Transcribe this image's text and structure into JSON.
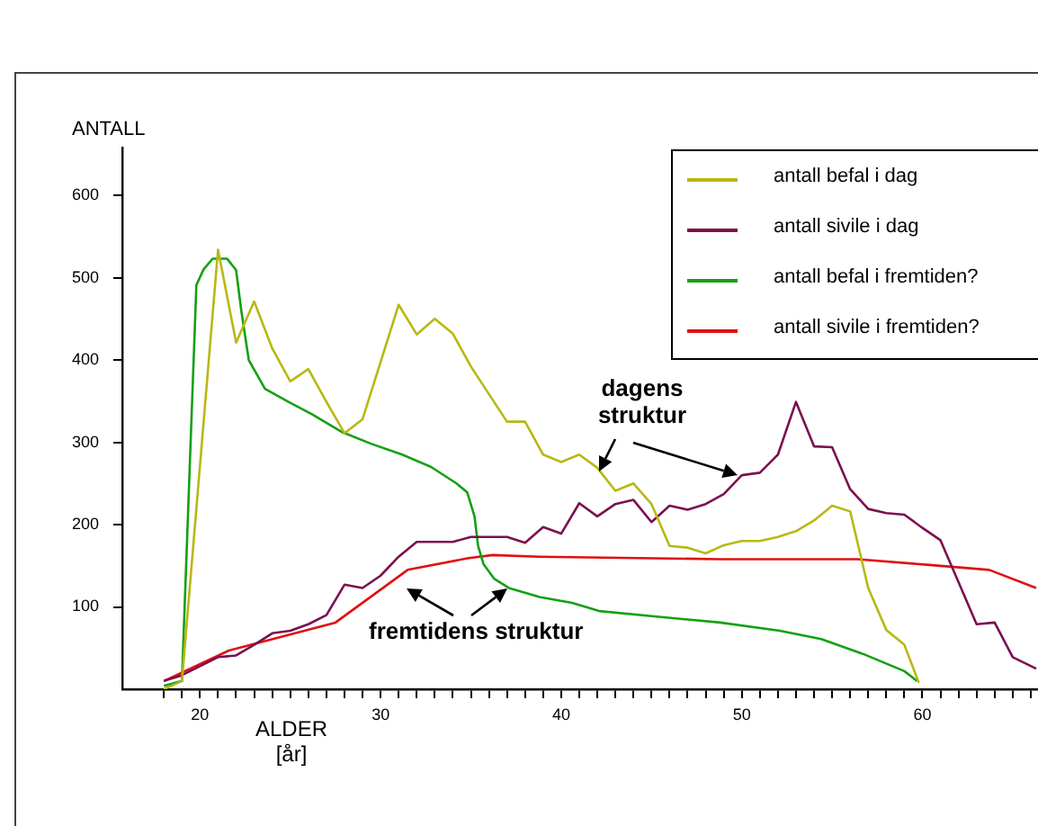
{
  "chart_data": {
    "type": "line",
    "xlabel": "ALDER [år]",
    "ylabel": "ANTALL",
    "xlim": [
      15.7,
      66.4
    ],
    "ylim": [
      0,
      658
    ],
    "xticks": [
      {
        "value": 18,
        "label": null
      },
      {
        "value": 19,
        "label": null
      },
      20,
      {
        "value": 21,
        "label": null
      },
      {
        "value": 22,
        "label": null
      },
      {
        "value": 23,
        "label": null
      },
      {
        "value": 24,
        "label": null
      },
      {
        "value": 25,
        "label": null
      },
      {
        "value": 26,
        "label": null
      },
      {
        "value": 27,
        "label": null
      },
      {
        "value": 28,
        "label": null
      },
      {
        "value": 29,
        "label": null
      },
      30,
      {
        "value": 31,
        "label": null
      },
      {
        "value": 32,
        "label": null
      },
      {
        "value": 33,
        "label": null
      },
      {
        "value": 34,
        "label": null
      },
      {
        "value": 35,
        "label": null
      },
      {
        "value": 36,
        "label": null
      },
      {
        "value": 37,
        "label": null
      },
      {
        "value": 38,
        "label": null
      },
      {
        "value": 39,
        "label": null
      },
      40,
      {
        "value": 41,
        "label": null
      },
      {
        "value": 42,
        "label": null
      },
      {
        "value": 43,
        "label": null
      },
      {
        "value": 44,
        "label": null
      },
      {
        "value": 45,
        "label": null
      },
      {
        "value": 46,
        "label": null
      },
      {
        "value": 47,
        "label": null
      },
      {
        "value": 48,
        "label": null
      },
      {
        "value": 49,
        "label": null
      },
      50,
      {
        "value": 51,
        "label": null
      },
      {
        "value": 52,
        "label": null
      },
      {
        "value": 53,
        "label": null
      },
      {
        "value": 54,
        "label": null
      },
      {
        "value": 55,
        "label": null
      },
      {
        "value": 56,
        "label": null
      },
      {
        "value": 57,
        "label": null
      },
      {
        "value": 58,
        "label": null
      },
      {
        "value": 59,
        "label": null
      },
      60,
      {
        "value": 61,
        "label": null
      },
      {
        "value": 62,
        "label": null
      },
      {
        "value": 63,
        "label": null
      },
      {
        "value": 64,
        "label": null
      },
      {
        "value": 65,
        "label": null
      },
      {
        "value": 66,
        "label": null
      }
    ],
    "yticks": [
      100,
      200,
      300,
      400,
      500,
      600
    ],
    "grid": false,
    "legend": "top right",
    "marker": "none",
    "line_style": "solid",
    "annotations": [
      "dagens struktur",
      "fremtidens struktur"
    ],
    "series": [
      {
        "name": "antall befal i dag",
        "color": "#b8b814",
        "x": [
          18,
          19,
          21,
          22,
          23,
          24,
          25,
          26,
          27,
          28,
          29,
          31,
          32,
          33,
          34,
          35,
          37,
          38,
          39,
          40,
          41,
          42,
          43,
          44,
          45,
          46,
          47,
          48,
          49,
          50,
          51,
          52,
          53,
          54,
          55,
          56,
          57,
          58,
          59,
          59.8
        ],
        "values": [
          0,
          10,
          534,
          421,
          471,
          414,
          374,
          389,
          349,
          311,
          328,
          467,
          431,
          450,
          432,
          392,
          325,
          325,
          285,
          276,
          285,
          269,
          241,
          250,
          225,
          174,
          172,
          165,
          175,
          180,
          180,
          185,
          192,
          205,
          223,
          216,
          123,
          72,
          54,
          8
        ]
      },
      {
        "name": "antall sivile i dag",
        "color": "#7a1050",
        "x": [
          18,
          19,
          21,
          22,
          23,
          24,
          25,
          26,
          27,
          28,
          29,
          30,
          31,
          32,
          33,
          34,
          35,
          36,
          37,
          38,
          39,
          40,
          41,
          42,
          43,
          44,
          45,
          46,
          47,
          48,
          49,
          50,
          51,
          52,
          53,
          54,
          55,
          56,
          57,
          58,
          59,
          60,
          61,
          62,
          63,
          64,
          65,
          66.3
        ],
        "values": [
          10,
          17,
          39,
          41,
          54,
          68,
          71,
          79,
          90,
          127,
          123,
          138,
          161,
          179,
          179,
          179,
          185,
          185,
          185,
          178,
          197,
          189,
          226,
          210,
          225,
          230,
          203,
          223,
          218,
          225,
          237,
          260,
          263,
          285,
          349,
          295,
          294,
          243,
          219,
          214,
          212,
          196,
          181,
          130,
          79,
          81,
          39,
          25
        ]
      },
      {
        "name": "antall befal i fremtiden?",
        "color": "#14a014",
        "x": [
          18,
          19,
          19.8,
          20.2,
          20.7,
          21.5,
          22,
          22.3,
          22.7,
          23.6,
          24.9,
          26.2,
          27.9,
          29.5,
          31.2,
          32.8,
          34.2,
          34.8,
          35.2,
          35.4,
          35.7,
          36.3,
          37.1,
          38.8,
          40.6,
          42.1,
          45.4,
          48.8,
          52.1,
          54.4,
          56.7,
          59,
          59.7
        ],
        "values": [
          4,
          10,
          491,
          510,
          523,
          523,
          509,
          458,
          400,
          365,
          349,
          334,
          312,
          298,
          285,
          270,
          250,
          239,
          210,
          174,
          152,
          134,
          123,
          112,
          105,
          95,
          88,
          81,
          71,
          61,
          43,
          22,
          10
        ]
      },
      {
        "name": "antall sivile i fremtiden?",
        "color": "#e01010",
        "x": [
          18,
          21.6,
          27.5,
          31.5,
          34.8,
          36.2,
          38.8,
          48.8,
          56.4,
          60.4,
          63.7,
          66.3
        ],
        "values": [
          10,
          47,
          81,
          145,
          159,
          163,
          161,
          158,
          158,
          151,
          145,
          123
        ]
      }
    ]
  }
}
